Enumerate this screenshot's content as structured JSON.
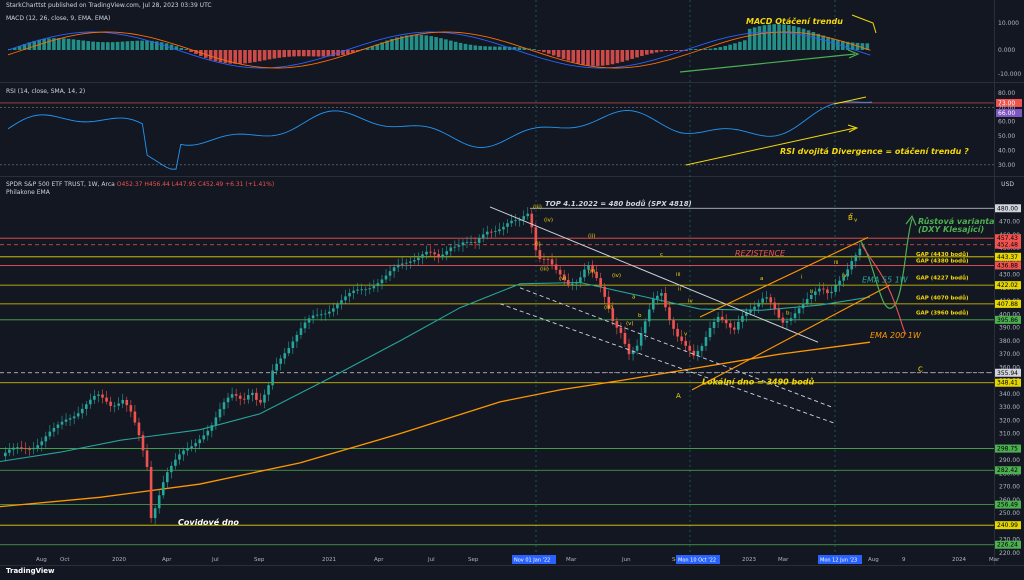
{
  "publisher": "StarkCharttst published on TradingView.com, Jul 28, 2023 03:39 UTC",
  "brand": "TradingView",
  "macd": {
    "header": "MACD (12, 26, close, 9, EMA, EMA)",
    "axis": [
      "10.000",
      "0.000",
      "-10.000"
    ],
    "annotation": "MACD Otáčení trendu"
  },
  "rsi": {
    "header": "RSI (14, close, SMA, 14, 2)",
    "axis": [
      "80.00",
      "73.00",
      "70.00",
      "66.00",
      "60.00",
      "50.00",
      "40.00",
      "30.00"
    ],
    "annotation": "RSI dvojitá Divergence = otáčení trendu ?"
  },
  "price": {
    "header": "SPDR S&P 500 ETF TRUST, 1W, Arca",
    "header2": "Philakone EMA",
    "ohlc": "O452.37 H456.44 L447.95 C452.49 +6.31 (+1.41%)",
    "currency": "USD"
  },
  "chart_data": {
    "type": "candlestick",
    "symbol": "SPY",
    "timeframe": "1W",
    "ylim": [
      220,
      490
    ],
    "price_ticks": [
      480,
      470,
      460,
      450,
      440,
      430,
      420,
      410,
      400,
      390,
      380,
      370,
      360,
      350,
      340,
      330,
      320,
      310,
      300,
      290,
      280,
      270,
      260,
      250,
      240,
      230,
      220
    ],
    "x_ticks": [
      "Aug",
      "Oct",
      "2020",
      "Apr",
      "Jul",
      "Sep",
      "2021",
      "Apr",
      "Jul",
      "Sep",
      "Jan",
      "Mar",
      "Jun",
      "Sep",
      "Dec",
      "2023",
      "Mar",
      "Jun",
      "Aug",
      "9",
      "2024",
      "Mar"
    ],
    "x_highlight": [
      "Nov 01 Jan '22",
      "Mon 10 Oct '22",
      "Mon 12 Jun '23"
    ],
    "close_path": [
      [
        0,
        293
      ],
      [
        14,
        297
      ],
      [
        26,
        300
      ],
      [
        40,
        305
      ],
      [
        54,
        312
      ],
      [
        66,
        322
      ],
      [
        80,
        330
      ],
      [
        96,
        337
      ],
      [
        110,
        332
      ],
      [
        122,
        338
      ],
      [
        130,
        325
      ],
      [
        138,
        305
      ],
      [
        146,
        283
      ],
      [
        150,
        245
      ],
      [
        156,
        262
      ],
      [
        164,
        281
      ],
      [
        176,
        290
      ],
      [
        190,
        300
      ],
      [
        200,
        310
      ],
      [
        212,
        318
      ],
      [
        222,
        330
      ],
      [
        232,
        340
      ],
      [
        242,
        338
      ],
      [
        250,
        344
      ],
      [
        258,
        330
      ],
      [
        266,
        340
      ],
      [
        272,
        358
      ],
      [
        282,
        372
      ],
      [
        292,
        382
      ],
      [
        302,
        390
      ],
      [
        312,
        397
      ],
      [
        322,
        402
      ],
      [
        334,
        408
      ],
      [
        346,
        412
      ],
      [
        358,
        418
      ],
      [
        372,
        424
      ],
      [
        386,
        428
      ],
      [
        398,
        436
      ],
      [
        410,
        443
      ],
      [
        424,
        447
      ],
      [
        438,
        440
      ],
      [
        450,
        453
      ],
      [
        462,
        456
      ],
      [
        474,
        451
      ],
      [
        486,
        462
      ],
      [
        498,
        467
      ],
      [
        508,
        470
      ],
      [
        518,
        468
      ],
      [
        528,
        476
      ],
      [
        536,
        445
      ],
      [
        546,
        444
      ],
      [
        556,
        430
      ],
      [
        566,
        420
      ],
      [
        576,
        426
      ],
      [
        586,
        441
      ],
      [
        596,
        425
      ],
      [
        604,
        409
      ],
      [
        612,
        393
      ],
      [
        620,
        388
      ],
      [
        628,
        372
      ],
      [
        636,
        376
      ],
      [
        644,
        392
      ],
      [
        652,
        410
      ],
      [
        660,
        418
      ],
      [
        668,
        399
      ],
      [
        676,
        384
      ],
      [
        684,
        374
      ],
      [
        692,
        366
      ],
      [
        700,
        376
      ],
      [
        708,
        392
      ],
      [
        716,
        400
      ],
      [
        724,
        392
      ],
      [
        732,
        384
      ],
      [
        740,
        398
      ],
      [
        748,
        406
      ],
      [
        756,
        410
      ],
      [
        764,
        413
      ],
      [
        772,
        403
      ],
      [
        780,
        392
      ],
      [
        788,
        398
      ],
      [
        796,
        406
      ],
      [
        804,
        410
      ],
      [
        812,
        413
      ],
      [
        820,
        418
      ],
      [
        828,
        416
      ],
      [
        836,
        427
      ],
      [
        844,
        431
      ],
      [
        850,
        438
      ],
      [
        856,
        443
      ],
      [
        861,
        450
      ]
    ],
    "ema55": [
      [
        0,
        289
      ],
      [
        60,
        296
      ],
      [
        120,
        305
      ],
      [
        200,
        313
      ],
      [
        260,
        325
      ],
      [
        330,
        352
      ],
      [
        400,
        380
      ],
      [
        460,
        405
      ],
      [
        520,
        423
      ],
      [
        580,
        424
      ],
      [
        640,
        414
      ],
      [
        700,
        404
      ],
      [
        760,
        403
      ],
      [
        820,
        407
      ],
      [
        870,
        413
      ]
    ],
    "ema200": [
      [
        0,
        255
      ],
      [
        100,
        262
      ],
      [
        200,
        272
      ],
      [
        300,
        288
      ],
      [
        400,
        310
      ],
      [
        500,
        334
      ],
      [
        560,
        343
      ],
      [
        620,
        350
      ],
      [
        700,
        360
      ],
      [
        780,
        370
      ],
      [
        870,
        379
      ]
    ],
    "levels": [
      {
        "price": 452.48,
        "label": "452.48",
        "color": "#ef5350",
        "style": "dash"
      },
      {
        "price": 457.43,
        "label": "457.43",
        "color": "#ef5350",
        "style": "solid"
      },
      {
        "price": 443.37,
        "label": "443.37",
        "color": "#e6d600",
        "style": "solid"
      },
      {
        "price": 436.88,
        "label": "436.88",
        "color": "#ef5350",
        "style": "solid"
      },
      {
        "price": 422.02,
        "label": "422.02",
        "color": "#e6d600",
        "style": "solid"
      },
      {
        "price": 407.88,
        "label": "407.88",
        "color": "#e6d600",
        "style": "solid"
      },
      {
        "price": 395.86,
        "label": "395.86",
        "color": "#4caf50",
        "style": "solid"
      },
      {
        "price": 355.94,
        "label": "355.94",
        "color": "#d1d4dc",
        "style": "dash"
      },
      {
        "price": 348.41,
        "label": "348.41",
        "color": "#e6d600",
        "style": "solid"
      },
      {
        "price": 298.75,
        "label": "298.75",
        "color": "#4caf50",
        "style": "solid"
      },
      {
        "price": 282.42,
        "label": "282.42",
        "color": "#4caf50",
        "style": "solid"
      },
      {
        "price": 256.49,
        "label": "256.49",
        "color": "#4caf50",
        "style": "solid"
      },
      {
        "price": 240.99,
        "label": "240.99",
        "color": "#e6d600",
        "style": "solid"
      },
      {
        "price": 226.24,
        "label": "226.24",
        "color": "#4caf50",
        "style": "solid"
      }
    ],
    "annotations": {
      "top": "TOP 4.1.2022 = 480 bodů (SPX 4818)",
      "resistance": "REZISTENCE",
      "growth1": "Růstová varianta",
      "growth2": "(DXY Klesající)",
      "gap4430": "GAP (4430 bodů)",
      "gap4380": "GAP (4380 bodů)",
      "gap4227": "GAP (4227 bodů)",
      "gap4070": "GAP (4070 bodů)",
      "gap3960": "GAP (3960 bodů)",
      "ema55": "EMA 55 1W",
      "ema200": "EMA 200 1W",
      "local_bottom": "Lokální dno = 3490 bodů",
      "covid": "Covidové dno",
      "A": "A",
      "B": "B",
      "C": "C",
      "waves": [
        "(iii)",
        "(iv)",
        "(i)",
        "(ii)",
        "(iii)",
        "(v)",
        "(iv)",
        "(ii)",
        "(iii)",
        "(v)",
        "a",
        "b",
        "c",
        "ii",
        "iii",
        "iv",
        "v",
        "a",
        "b",
        "c",
        "i",
        "ii",
        "iii",
        "iv",
        "v"
      ]
    }
  }
}
